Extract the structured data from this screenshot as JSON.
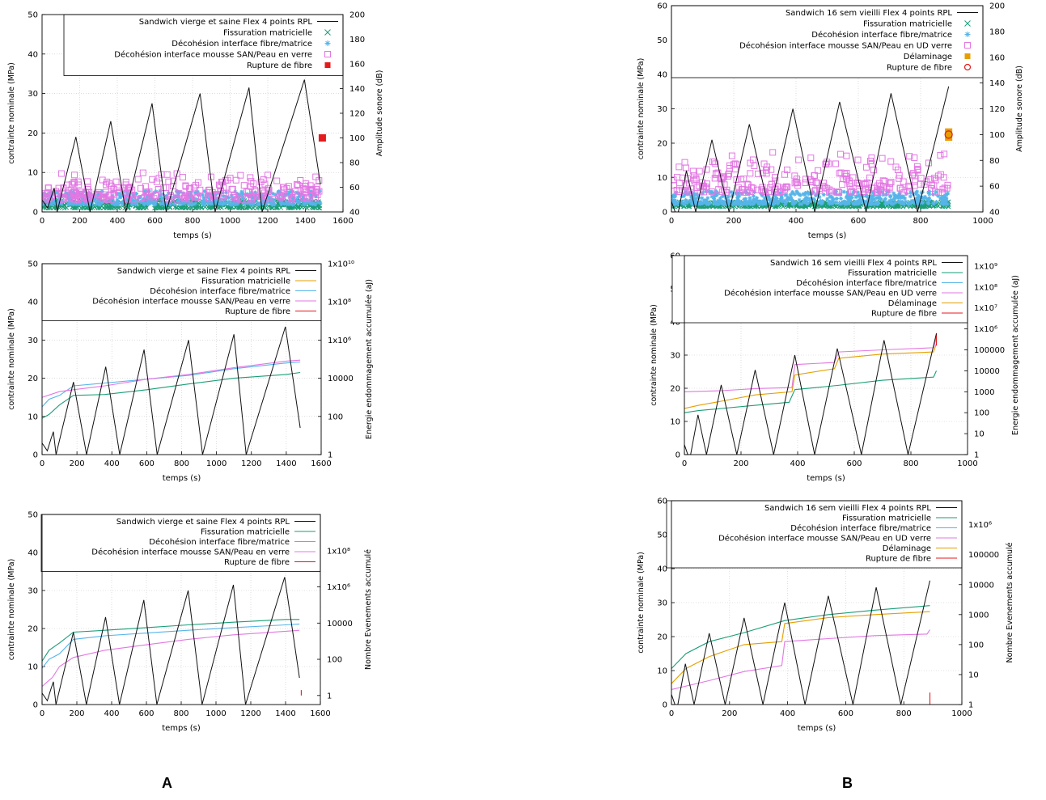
{
  "panel_labels": [
    "A",
    "B"
  ],
  "colors": {
    "stress": "#111111",
    "matrix": "#1a9e77",
    "fibre_matrix": "#56b4e9",
    "foam_skin": "#e377e3",
    "delamination": "#e69f00",
    "fibre_break": "#e41a1c",
    "grid": "#c8c8c8"
  },
  "chart_data": [
    {
      "id": "A1",
      "type": "scatter",
      "title": "",
      "xlabel": "temps (s)",
      "ylabel": "contrainte nominale (MPa)",
      "y2label": "Amplitude sonore (dB)",
      "xlim": [
        0,
        1600
      ],
      "ylim": [
        0,
        50
      ],
      "y2lim": [
        40,
        200
      ],
      "xticks": [
        "0",
        "200",
        "400",
        "600",
        "800",
        "1000",
        "1200",
        "1400",
        "1600"
      ],
      "yticks": [
        "0",
        "10",
        "20",
        "30",
        "40",
        "50"
      ],
      "y2ticks": [
        "40",
        "60",
        "80",
        "100",
        "120",
        "140",
        "160",
        "180",
        "200"
      ],
      "grid": true,
      "legend_position": "top-right",
      "stress_series": {
        "name": "Sandwich  vierge et saine Flex 4 points RPL",
        "x": [
          0,
          30,
          50,
          65,
          80,
          180,
          255,
          365,
          445,
          585,
          660,
          840,
          920,
          1100,
          1170,
          1395,
          1480
        ],
        "y": [
          3,
          1,
          4,
          6,
          0,
          19,
          0,
          23,
          0,
          27.5,
          0,
          30,
          0,
          31.5,
          0,
          33.5,
          7
        ]
      },
      "series": [
        {
          "name": "Fissuration matricielle",
          "marker": "x",
          "color": "#1a9e77",
          "band": [
            43,
            50
          ],
          "xrange": [
            0,
            1480
          ]
        },
        {
          "name": "Décohésion interface fibre/matrice",
          "marker": "*",
          "color": "#56b4e9",
          "band": [
            46,
            57
          ],
          "xrange": [
            0,
            1480
          ]
        },
        {
          "name": "Décohésion interface mousse SAN/Peau en verre",
          "marker": "square-open",
          "color": "#e377e3",
          "band": [
            50,
            75
          ],
          "xrange": [
            0,
            1480
          ]
        },
        {
          "name": "Rupture de fibre",
          "marker": "square-filled",
          "color": "#e41a1c",
          "points": [
            [
              1490,
              100
            ]
          ]
        }
      ]
    },
    {
      "id": "A2",
      "type": "line",
      "title": "",
      "xlabel": "temps (s)",
      "ylabel": "contrainte nominale (MPa)",
      "y2label": "Energie endommagement accumulée (aJ)",
      "xlim": [
        0,
        1600
      ],
      "ylim": [
        0,
        50
      ],
      "y2log": [
        0,
        10
      ],
      "xticks": [
        "0",
        "200",
        "400",
        "600",
        "800",
        "1000",
        "1200",
        "1400",
        "1600"
      ],
      "yticks": [
        "0",
        "10",
        "20",
        "30",
        "40",
        "50"
      ],
      "y2ticks": [
        "1",
        "100",
        "10000",
        "1x10⁶",
        "1x10⁸",
        "1x10¹⁰"
      ],
      "grid": true,
      "legend_position": "top-right",
      "stress_series": {
        "name": "Sandwich  vierge et saine Flex 4 points RPL",
        "x": [
          0,
          30,
          50,
          65,
          80,
          180,
          255,
          365,
          445,
          585,
          660,
          840,
          920,
          1100,
          1170,
          1395,
          1480
        ],
        "y": [
          3,
          1,
          4,
          6,
          0,
          19,
          0,
          23,
          0,
          27.5,
          0,
          30,
          0,
          31.5,
          0,
          33.5,
          7
        ]
      },
      "series": [
        {
          "name": "Fissuration matricielle",
          "color": "#e69f00",
          "x": [],
          "y": []
        },
        {
          "name": "Décohésion interface fibre/matrice",
          "color": "#56b4e9",
          "x": [
            0,
            40,
            100,
            180,
            360,
            600,
            840,
            1100,
            1400,
            1480
          ],
          "y": [
            2.5,
            2.9,
            3.1,
            3.6,
            3.75,
            3.95,
            4.15,
            4.5,
            4.8,
            4.85
          ]
        },
        {
          "name": "Décohésion interface mousse SAN/Peau en verre",
          "color": "#e377e3",
          "x": [
            0,
            100,
            180,
            360,
            600,
            840,
            1100,
            1400,
            1480
          ],
          "y": [
            3.0,
            3.3,
            3.4,
            3.6,
            3.95,
            4.2,
            4.55,
            4.9,
            4.95
          ]
        },
        {
          "name": "Rupture de fibre",
          "color": "#e41a1c",
          "x": [],
          "y": []
        },
        {
          "name": "",
          "color": "#1a9e77",
          "x": [
            0,
            40,
            100,
            180,
            360,
            600,
            840,
            1100,
            1400,
            1480
          ],
          "y": [
            1.9,
            2.1,
            2.6,
            3.1,
            3.15,
            3.4,
            3.7,
            4.0,
            4.2,
            4.3
          ]
        }
      ]
    },
    {
      "id": "A3",
      "type": "line",
      "title": "",
      "xlabel": "temps (s)",
      "ylabel": "contrainte nominale (MPa)",
      "y2label": "Nombre Evenements accumulé",
      "xlim": [
        0,
        1600
      ],
      "ylim": [
        0,
        50
      ],
      "y2log": [
        -0.5,
        10
      ],
      "xticks": [
        "0",
        "200",
        "400",
        "600",
        "800",
        "1000",
        "1200",
        "1400",
        "1600"
      ],
      "yticks": [
        "0",
        "10",
        "20",
        "30",
        "40",
        "50"
      ],
      "y2ticks": [
        "1",
        "100",
        "10000",
        "1x10⁶",
        "1x10⁸"
      ],
      "grid": true,
      "legend_position": "top-right",
      "stress_series": {
        "name": "Sandwich  vierge et saine Flex 4 points RPL",
        "x": [
          0,
          30,
          50,
          65,
          80,
          180,
          255,
          365,
          445,
          585,
          660,
          840,
          920,
          1100,
          1170,
          1395,
          1480
        ],
        "y": [
          3,
          1,
          4,
          6,
          0,
          19,
          0,
          23,
          0,
          27.5,
          0,
          30,
          0,
          31.5,
          0,
          33.5,
          7
        ]
      },
      "series": [
        {
          "name": "Fissuration matricielle",
          "color": "#1a9e77",
          "x": [
            0,
            40,
            100,
            180,
            360,
            600,
            840,
            1100,
            1400,
            1480
          ],
          "y": [
            1.9,
            2.5,
            2.9,
            3.5,
            3.6,
            3.75,
            3.9,
            4.05,
            4.2,
            4.2
          ]
        },
        {
          "name": "Décohésion interface fibre/matrice",
          "color": "#56b4e9",
          "x": [
            0,
            40,
            100,
            180,
            360,
            600,
            840,
            1100,
            1400,
            1480
          ],
          "y": [
            1.5,
            2.0,
            2.3,
            3.1,
            3.3,
            3.45,
            3.6,
            3.75,
            3.9,
            3.95
          ]
        },
        {
          "name": "Décohésion interface mousse SAN/Peau en verre",
          "color": "#e377e3",
          "x": [
            0,
            60,
            100,
            180,
            360,
            600,
            840,
            1100,
            1400,
            1480
          ],
          "y": [
            0.5,
            1.0,
            1.6,
            2.1,
            2.5,
            2.8,
            3.1,
            3.35,
            3.55,
            3.6
          ]
        },
        {
          "name": "Rupture de fibre",
          "color": "#e41a1c",
          "x": [
            1490,
            1490
          ],
          "y": [
            0,
            0.3
          ]
        }
      ]
    },
    {
      "id": "B1",
      "type": "scatter",
      "title": "",
      "xlabel": "temps (s)",
      "ylabel": "contrainte nominale (MPa)",
      "y2label": "Amplitude sonore (dB)",
      "xlim": [
        0,
        1000
      ],
      "ylim": [
        0,
        60
      ],
      "y2lim": [
        40,
        200
      ],
      "xticks": [
        "0",
        "200",
        "400",
        "600",
        "800",
        "1000"
      ],
      "yticks": [
        "0",
        "10",
        "20",
        "30",
        "40",
        "50",
        "60"
      ],
      "y2ticks": [
        "40",
        "60",
        "80",
        "100",
        "120",
        "140",
        "160",
        "180",
        "200"
      ],
      "grid": true,
      "legend_position": "top-right",
      "stress_series": {
        "name": "Sandwich 16 sem vieilli Flex 4 points RPL",
        "x": [
          0,
          12,
          22,
          48,
          78,
          130,
          185,
          250,
          315,
          390,
          460,
          540,
          625,
          705,
          790,
          890
        ],
        "y": [
          3,
          0,
          0,
          12,
          0,
          21,
          0,
          25.5,
          0,
          30,
          0,
          32,
          0,
          34.5,
          0,
          36.5
        ]
      },
      "series": [
        {
          "name": "Fissuration matricielle",
          "marker": "x",
          "color": "#1a9e77",
          "band": [
            44,
            48
          ],
          "xrange": [
            0,
            890
          ]
        },
        {
          "name": "Décohésion interface fibre/matrice",
          "marker": "*",
          "color": "#56b4e9",
          "band": [
            46,
            56
          ],
          "xrange": [
            0,
            890
          ]
        },
        {
          "name": "Décohésion interface mousse SAN/Peau en UD verre",
          "marker": "square-open",
          "color": "#e377e3",
          "band": [
            55,
            90
          ],
          "xrange": [
            0,
            890
          ]
        },
        {
          "name": "Délaminage",
          "marker": "square-filled",
          "color": "#e69f00",
          "points": [
            [
              890,
              98
            ],
            [
              890,
              102
            ]
          ]
        },
        {
          "name": "Rupture de fibre",
          "marker": "circle-open",
          "color": "#e41a1c",
          "points": [
            [
              890,
              100
            ]
          ]
        }
      ]
    },
    {
      "id": "B2",
      "type": "line",
      "title": "",
      "xlabel": "temps (s)",
      "ylabel": "contrainte nominale (MPa)",
      "y2label": "Energie endommagement accumulée (aJ)",
      "xlim": [
        0,
        1000
      ],
      "ylim": [
        0,
        60
      ],
      "y2log": [
        0,
        9.5
      ],
      "xticks": [
        "0",
        "200",
        "400",
        "600",
        "800",
        "1000"
      ],
      "yticks": [
        "0",
        "10",
        "20",
        "30",
        "40",
        "50",
        "60"
      ],
      "y2ticks": [
        "1",
        "10",
        "100",
        "1000",
        "10000",
        "100000",
        "1x10⁶",
        "1x10⁷",
        "1x10⁸",
        "1x10⁹"
      ],
      "grid": true,
      "legend_position": "top-right",
      "stress_series": {
        "name": "Sandwich 16 sem vieilli Flex 4 points RPL",
        "x": [
          0,
          12,
          22,
          48,
          78,
          130,
          185,
          250,
          315,
          390,
          460,
          540,
          625,
          705,
          790,
          890
        ],
        "y": [
          3,
          0,
          0,
          12,
          0,
          21,
          0,
          25.5,
          0,
          30,
          0,
          32,
          0,
          34.5,
          0,
          36.5
        ]
      },
      "series": [
        {
          "name": "Fissuration matricielle",
          "color": "#1a9e77",
          "x": [
            0,
            50,
            130,
            250,
            370,
            390,
            540,
            700,
            880,
            890
          ],
          "y": [
            2.0,
            2.1,
            2.2,
            2.35,
            2.5,
            3.1,
            3.3,
            3.55,
            3.7,
            4.0
          ]
        },
        {
          "name": "Décohésion interface fibre/matrice",
          "color": "#56b4e9",
          "x": [],
          "y": []
        },
        {
          "name": "Décohésion interface mousse SAN/Peau en UD verre",
          "color": "#e377e3",
          "x": [
            0,
            130,
            250,
            380,
            390,
            530,
            545,
            700,
            880,
            890
          ],
          "y": [
            3.0,
            3.05,
            3.15,
            3.2,
            4.3,
            4.4,
            4.9,
            5.0,
            5.1,
            5.6
          ]
        },
        {
          "name": "Délaminage",
          "color": "#e69f00",
          "x": [
            0,
            50,
            130,
            250,
            380,
            390,
            530,
            545,
            700,
            880,
            890
          ],
          "y": [
            2.2,
            2.35,
            2.55,
            2.85,
            3.0,
            3.8,
            4.1,
            4.6,
            4.8,
            4.9,
            5.3
          ]
        },
        {
          "name": "Rupture de fibre",
          "color": "#e41a1c",
          "x": [
            890,
            890
          ],
          "y": [
            5.2,
            5.8
          ]
        }
      ]
    },
    {
      "id": "B3",
      "type": "line",
      "title": "",
      "xlabel": "temps (s)",
      "ylabel": "contrainte nominale (MPa)",
      "y2label": "Nombre Evenements accumulé",
      "xlim": [
        0,
        1000
      ],
      "ylim": [
        0,
        60
      ],
      "y2log": [
        0,
        6.8
      ],
      "xticks": [
        "0",
        "200",
        "400",
        "600",
        "800",
        "1000"
      ],
      "yticks": [
        "0",
        "10",
        "20",
        "30",
        "40",
        "50",
        "60"
      ],
      "y2ticks": [
        "1",
        "10",
        "100",
        "1000",
        "10000",
        "100000",
        "1x10⁶"
      ],
      "grid": true,
      "legend_position": "top-right",
      "stress_series": {
        "name": "Sandwich 16 sem vieilli Flex 4 points RPL",
        "x": [
          0,
          12,
          22,
          48,
          78,
          130,
          185,
          250,
          315,
          390,
          460,
          540,
          625,
          705,
          790,
          890
        ],
        "y": [
          3,
          0,
          0,
          12,
          0,
          21,
          0,
          25.5,
          0,
          30,
          0,
          32,
          0,
          34.5,
          0,
          36.5
        ]
      },
      "series": [
        {
          "name": "Fissuration matricielle",
          "color": "#1a9e77",
          "x": [
            0,
            50,
            130,
            250,
            390,
            540,
            700,
            890
          ],
          "y": [
            1.2,
            1.7,
            2.1,
            2.4,
            2.8,
            3.0,
            3.15,
            3.3
          ]
        },
        {
          "name": "Décohésion interface fibre/matrice",
          "color": "#56b4e9",
          "x": [],
          "y": []
        },
        {
          "name": "Décohésion interface mousse SAN/Peau en UD verre",
          "color": "#e377e3",
          "x": [
            0,
            130,
            250,
            380,
            390,
            540,
            700,
            880,
            890
          ],
          "y": [
            0.5,
            0.8,
            1.1,
            1.3,
            2.1,
            2.2,
            2.3,
            2.35,
            2.5
          ]
        },
        {
          "name": "Délaminage",
          "color": "#e69f00",
          "x": [
            0,
            50,
            130,
            250,
            380,
            390,
            540,
            700,
            890
          ],
          "y": [
            0.7,
            1.2,
            1.6,
            2.0,
            2.1,
            2.7,
            2.9,
            3.0,
            3.1
          ]
        },
        {
          "name": "Rupture de fibre",
          "color": "#e41a1c",
          "x": [
            890,
            890
          ],
          "y": [
            0,
            0.4
          ]
        }
      ]
    }
  ]
}
